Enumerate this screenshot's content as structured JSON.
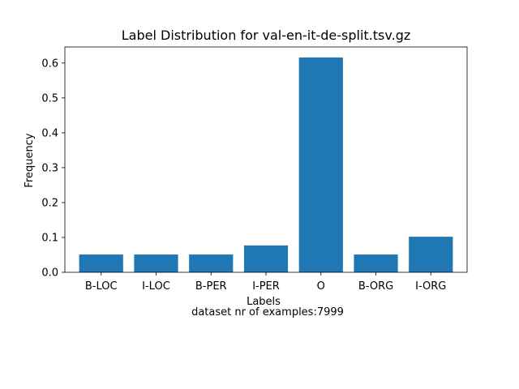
{
  "chart_data": {
    "type": "bar",
    "title": "Label Distribution for val-en-it-de-split.tsv.gz",
    "xlabel": "Labels",
    "ylabel": "Frequency",
    "subtitle_below": "dataset nr of examples:7999",
    "categories": [
      "B-LOC",
      "I-LOC",
      "B-PER",
      "I-PER",
      "O",
      "B-ORG",
      "I-ORG"
    ],
    "values": [
      0.051,
      0.051,
      0.051,
      0.077,
      0.616,
      0.051,
      0.102
    ],
    "ylim": [
      0,
      0.646
    ],
    "yticks": [
      0.0,
      0.1,
      0.2,
      0.3,
      0.4,
      0.5,
      0.6
    ],
    "ytick_labels": [
      "0.0",
      "0.1",
      "0.2",
      "0.3",
      "0.4",
      "0.5",
      "0.6"
    ],
    "bar_color": "#1f77b4",
    "grid": false,
    "legend": "none"
  }
}
